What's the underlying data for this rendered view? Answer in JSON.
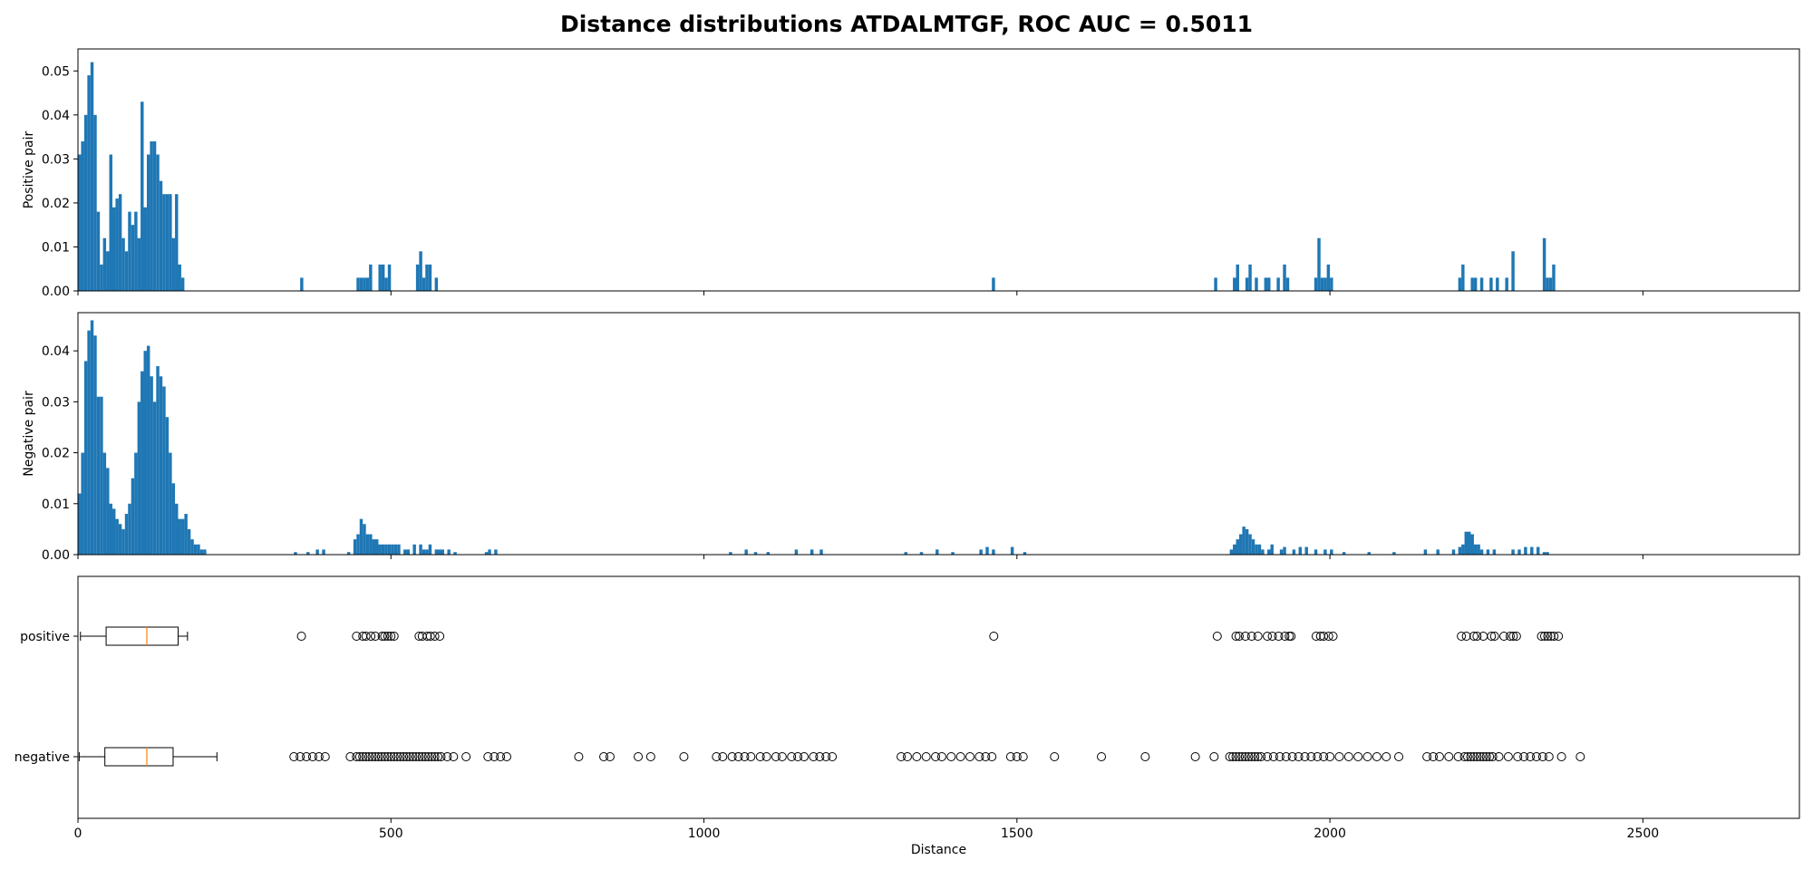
{
  "figure": {
    "title": "Distance distributions ATDALMTGF, ROC AUC = 0.5011",
    "xlabel": "Distance"
  },
  "chart_data": [
    {
      "type": "bar",
      "subtype": "histogram",
      "ylabel": "Positive pair",
      "xlim": [
        0,
        2750
      ],
      "ylim": [
        0,
        0.055
      ],
      "yticks": [
        0.0,
        0.01,
        0.02,
        0.03,
        0.04,
        0.05
      ],
      "ytick_labels": [
        "0.00",
        "0.01",
        "0.02",
        "0.03",
        "0.04",
        "0.05"
      ],
      "xticks": [
        0,
        500,
        1000,
        1500,
        2000,
        2500
      ],
      "bin_width": 5,
      "color": "#1f77b4",
      "bins": [
        [
          0,
          0.031
        ],
        [
          5,
          0.034
        ],
        [
          10,
          0.04
        ],
        [
          15,
          0.049
        ],
        [
          20,
          0.052
        ],
        [
          25,
          0.04
        ],
        [
          30,
          0.018
        ],
        [
          35,
          0.006
        ],
        [
          40,
          0.012
        ],
        [
          45,
          0.009
        ],
        [
          50,
          0.031
        ],
        [
          55,
          0.019
        ],
        [
          60,
          0.021
        ],
        [
          65,
          0.022
        ],
        [
          70,
          0.012
        ],
        [
          75,
          0.009
        ],
        [
          80,
          0.018
        ],
        [
          85,
          0.015
        ],
        [
          90,
          0.018
        ],
        [
          95,
          0.012
        ],
        [
          100,
          0.043
        ],
        [
          105,
          0.019
        ],
        [
          110,
          0.031
        ],
        [
          115,
          0.034
        ],
        [
          120,
          0.034
        ],
        [
          125,
          0.031
        ],
        [
          130,
          0.025
        ],
        [
          135,
          0.022
        ],
        [
          140,
          0.022
        ],
        [
          145,
          0.022
        ],
        [
          150,
          0.012
        ],
        [
          155,
          0.022
        ],
        [
          160,
          0.006
        ],
        [
          165,
          0.003
        ],
        [
          355,
          0.003
        ],
        [
          445,
          0.003
        ],
        [
          450,
          0.003
        ],
        [
          455,
          0.003
        ],
        [
          460,
          0.003
        ],
        [
          465,
          0.006
        ],
        [
          480,
          0.006
        ],
        [
          485,
          0.006
        ],
        [
          490,
          0.003
        ],
        [
          495,
          0.006
        ],
        [
          540,
          0.006
        ],
        [
          545,
          0.009
        ],
        [
          550,
          0.003
        ],
        [
          555,
          0.006
        ],
        [
          560,
          0.006
        ],
        [
          570,
          0.003
        ],
        [
          1460,
          0.003
        ],
        [
          1815,
          0.003
        ],
        [
          1845,
          0.003
        ],
        [
          1850,
          0.006
        ],
        [
          1865,
          0.003
        ],
        [
          1870,
          0.006
        ],
        [
          1880,
          0.003
        ],
        [
          1895,
          0.003
        ],
        [
          1900,
          0.003
        ],
        [
          1915,
          0.003
        ],
        [
          1925,
          0.006
        ],
        [
          1930,
          0.003
        ],
        [
          1975,
          0.003
        ],
        [
          1980,
          0.012
        ],
        [
          1985,
          0.003
        ],
        [
          1990,
          0.003
        ],
        [
          1995,
          0.006
        ],
        [
          2000,
          0.003
        ],
        [
          2205,
          0.003
        ],
        [
          2210,
          0.006
        ],
        [
          2225,
          0.003
        ],
        [
          2230,
          0.003
        ],
        [
          2240,
          0.003
        ],
        [
          2255,
          0.003
        ],
        [
          2265,
          0.003
        ],
        [
          2280,
          0.003
        ],
        [
          2290,
          0.009
        ],
        [
          2340,
          0.012
        ],
        [
          2345,
          0.003
        ],
        [
          2350,
          0.003
        ],
        [
          2355,
          0.006
        ]
      ]
    },
    {
      "type": "bar",
      "subtype": "histogram",
      "ylabel": "Negative pair",
      "xlim": [
        0,
        2750
      ],
      "ylim": [
        0,
        0.0475
      ],
      "yticks": [
        0.0,
        0.01,
        0.02,
        0.03,
        0.04
      ],
      "ytick_labels": [
        "0.00",
        "0.01",
        "0.02",
        "0.03",
        "0.04"
      ],
      "xticks": [
        0,
        500,
        1000,
        1500,
        2000,
        2500
      ],
      "bin_width": 5,
      "color": "#1f77b4",
      "bins": [
        [
          0,
          0.012
        ],
        [
          5,
          0.02
        ],
        [
          10,
          0.038
        ],
        [
          15,
          0.044
        ],
        [
          20,
          0.046
        ],
        [
          25,
          0.043
        ],
        [
          30,
          0.031
        ],
        [
          35,
          0.031
        ],
        [
          40,
          0.02
        ],
        [
          45,
          0.017
        ],
        [
          50,
          0.01
        ],
        [
          55,
          0.009
        ],
        [
          60,
          0.007
        ],
        [
          65,
          0.006
        ],
        [
          70,
          0.005
        ],
        [
          75,
          0.008
        ],
        [
          80,
          0.01
        ],
        [
          85,
          0.015
        ],
        [
          90,
          0.02
        ],
        [
          95,
          0.03
        ],
        [
          100,
          0.036
        ],
        [
          105,
          0.04
        ],
        [
          110,
          0.041
        ],
        [
          115,
          0.035
        ],
        [
          120,
          0.03
        ],
        [
          125,
          0.037
        ],
        [
          130,
          0.035
        ],
        [
          135,
          0.033
        ],
        [
          140,
          0.027
        ],
        [
          145,
          0.02
        ],
        [
          150,
          0.014
        ],
        [
          155,
          0.01
        ],
        [
          160,
          0.007
        ],
        [
          165,
          0.007
        ],
        [
          170,
          0.008
        ],
        [
          175,
          0.005
        ],
        [
          180,
          0.003
        ],
        [
          185,
          0.002
        ],
        [
          190,
          0.002
        ],
        [
          195,
          0.001
        ],
        [
          200,
          0.001
        ],
        [
          345,
          0.0005
        ],
        [
          365,
          0.0005
        ],
        [
          380,
          0.001
        ],
        [
          390,
          0.001
        ],
        [
          430,
          0.0005
        ],
        [
          440,
          0.003
        ],
        [
          445,
          0.004
        ],
        [
          450,
          0.007
        ],
        [
          455,
          0.006
        ],
        [
          460,
          0.004
        ],
        [
          465,
          0.004
        ],
        [
          470,
          0.003
        ],
        [
          475,
          0.003
        ],
        [
          480,
          0.002
        ],
        [
          485,
          0.002
        ],
        [
          490,
          0.002
        ],
        [
          495,
          0.002
        ],
        [
          500,
          0.002
        ],
        [
          505,
          0.002
        ],
        [
          510,
          0.002
        ],
        [
          520,
          0.001
        ],
        [
          525,
          0.001
        ],
        [
          535,
          0.002
        ],
        [
          545,
          0.002
        ],
        [
          550,
          0.001
        ],
        [
          555,
          0.001
        ],
        [
          560,
          0.002
        ],
        [
          570,
          0.001
        ],
        [
          575,
          0.001
        ],
        [
          580,
          0.001
        ],
        [
          590,
          0.001
        ],
        [
          600,
          0.0005
        ],
        [
          650,
          0.0005
        ],
        [
          655,
          0.001
        ],
        [
          665,
          0.001
        ],
        [
          1040,
          0.0005
        ],
        [
          1065,
          0.001
        ],
        [
          1080,
          0.0005
        ],
        [
          1100,
          0.0005
        ],
        [
          1145,
          0.001
        ],
        [
          1170,
          0.001
        ],
        [
          1185,
          0.001
        ],
        [
          1320,
          0.0005
        ],
        [
          1345,
          0.0005
        ],
        [
          1370,
          0.001
        ],
        [
          1395,
          0.0005
        ],
        [
          1440,
          0.001
        ],
        [
          1450,
          0.0015
        ],
        [
          1460,
          0.001
        ],
        [
          1490,
          0.0015
        ],
        [
          1510,
          0.0005
        ],
        [
          1840,
          0.001
        ],
        [
          1845,
          0.002
        ],
        [
          1850,
          0.003
        ],
        [
          1855,
          0.004
        ],
        [
          1860,
          0.0055
        ],
        [
          1865,
          0.005
        ],
        [
          1870,
          0.004
        ],
        [
          1875,
          0.003
        ],
        [
          1880,
          0.002
        ],
        [
          1885,
          0.002
        ],
        [
          1890,
          0.001
        ],
        [
          1900,
          0.001
        ],
        [
          1905,
          0.002
        ],
        [
          1920,
          0.001
        ],
        [
          1925,
          0.0015
        ],
        [
          1940,
          0.001
        ],
        [
          1950,
          0.0015
        ],
        [
          1960,
          0.0015
        ],
        [
          1975,
          0.001
        ],
        [
          1990,
          0.001
        ],
        [
          2000,
          0.001
        ],
        [
          2020,
          0.0005
        ],
        [
          2060,
          0.0005
        ],
        [
          2100,
          0.0005
        ],
        [
          2150,
          0.001
        ],
        [
          2170,
          0.001
        ],
        [
          2195,
          0.001
        ],
        [
          2205,
          0.0015
        ],
        [
          2210,
          0.002
        ],
        [
          2215,
          0.0045
        ],
        [
          2220,
          0.0045
        ],
        [
          2225,
          0.004
        ],
        [
          2230,
          0.002
        ],
        [
          2235,
          0.002
        ],
        [
          2240,
          0.001
        ],
        [
          2250,
          0.001
        ],
        [
          2260,
          0.001
        ],
        [
          2290,
          0.001
        ],
        [
          2300,
          0.001
        ],
        [
          2310,
          0.0015
        ],
        [
          2320,
          0.0015
        ],
        [
          2330,
          0.0015
        ],
        [
          2340,
          0.0005
        ],
        [
          2345,
          0.0005
        ]
      ]
    },
    {
      "type": "boxplot",
      "orientation": "horizontal",
      "xlim": [
        0,
        2750
      ],
      "xticks": [
        0,
        500,
        1000,
        1500,
        2000,
        2500
      ],
      "xtick_labels": [
        "0",
        "500",
        "1000",
        "1500",
        "2000",
        "2500"
      ],
      "boxes": [
        {
          "label": "positive",
          "whisker_low": 4,
          "q1": 45,
          "median": 110,
          "q3": 160,
          "whisker_high": 175,
          "outliers": [
            357,
            445,
            455,
            460,
            468,
            475,
            486,
            490,
            495,
            500,
            505,
            545,
            550,
            558,
            563,
            570,
            578,
            1463,
            1820,
            1850,
            1855,
            1865,
            1875,
            1885,
            1900,
            1908,
            1918,
            1928,
            1935,
            1938,
            1978,
            1985,
            1990,
            1998,
            2005,
            2210,
            2218,
            2230,
            2235,
            2245,
            2258,
            2263,
            2278,
            2288,
            2293,
            2298,
            2338,
            2343,
            2348,
            2353,
            2358,
            2365
          ]
        },
        {
          "label": "negative",
          "whisker_low": 2,
          "q1": 43,
          "median": 110,
          "q3": 152,
          "whisker_high": 222,
          "outliers": [
            345,
            355,
            365,
            375,
            385,
            395,
            435,
            445,
            450,
            455,
            460,
            465,
            470,
            475,
            480,
            485,
            490,
            495,
            500,
            505,
            510,
            515,
            520,
            525,
            530,
            535,
            540,
            545,
            550,
            555,
            560,
            565,
            570,
            575,
            580,
            590,
            600,
            620,
            655,
            665,
            675,
            685,
            800,
            840,
            850,
            895,
            915,
            968,
            1020,
            1030,
            1045,
            1055,
            1065,
            1075,
            1090,
            1100,
            1115,
            1125,
            1140,
            1150,
            1160,
            1175,
            1185,
            1195,
            1205,
            1315,
            1325,
            1340,
            1355,
            1370,
            1380,
            1395,
            1410,
            1425,
            1440,
            1450,
            1460,
            1490,
            1500,
            1510,
            1560,
            1635,
            1705,
            1785,
            1815,
            1840,
            1845,
            1850,
            1855,
            1860,
            1865,
            1870,
            1875,
            1880,
            1885,
            1890,
            1900,
            1910,
            1920,
            1930,
            1940,
            1950,
            1960,
            1970,
            1980,
            1990,
            2000,
            2015,
            2030,
            2045,
            2060,
            2075,
            2090,
            2110,
            2155,
            2165,
            2175,
            2190,
            2205,
            2215,
            2220,
            2225,
            2230,
            2235,
            2240,
            2245,
            2250,
            2255,
            2260,
            2270,
            2285,
            2300,
            2310,
            2320,
            2330,
            2340,
            2350,
            2370,
            2400
          ]
        }
      ]
    }
  ]
}
